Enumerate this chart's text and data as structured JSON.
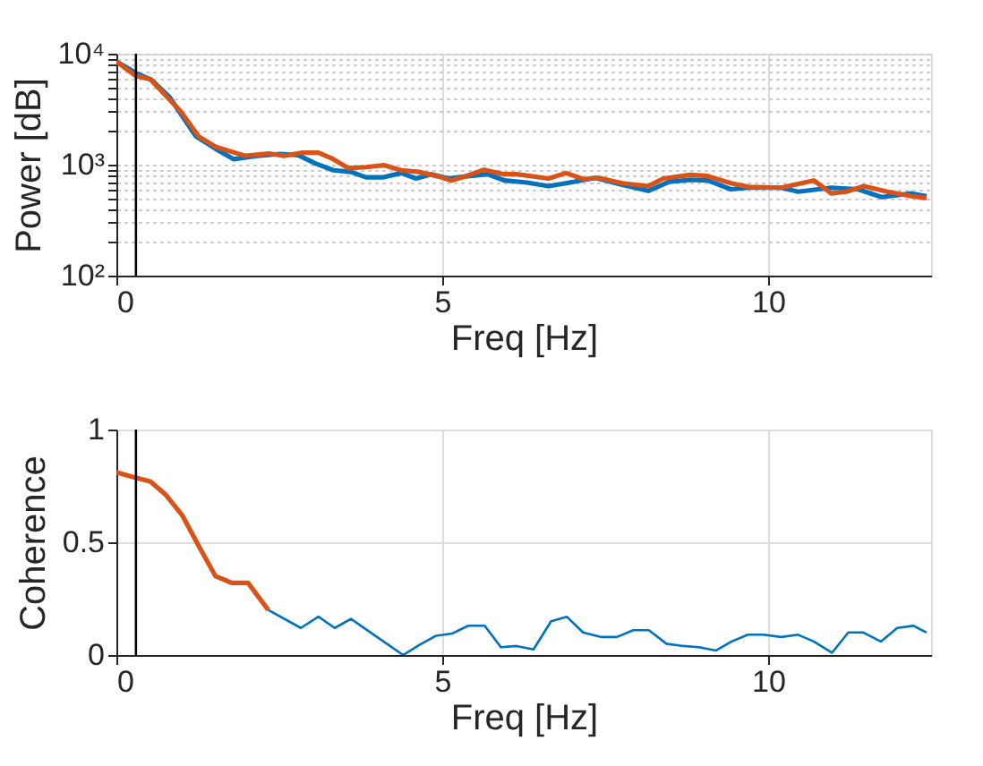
{
  "chart_data": [
    {
      "type": "line",
      "xlabel": "Freq [Hz]",
      "ylabel": "Power [dB]",
      "log": "y",
      "grid": true,
      "marker": "none",
      "line_style": "solid",
      "xlim": [
        0,
        12.5
      ],
      "xticks": [
        0,
        5,
        10
      ],
      "ylim": [
        100,
        10000
      ],
      "yticks": [
        {
          "value": 100,
          "label": "10²"
        },
        {
          "value": 200,
          "label": null
        },
        {
          "value": 300,
          "label": null
        },
        {
          "value": 400,
          "label": null
        },
        {
          "value": 500,
          "label": null
        },
        {
          "value": 600,
          "label": null
        },
        {
          "value": 700,
          "label": null
        },
        {
          "value": 800,
          "label": null
        },
        {
          "value": 900,
          "label": null
        },
        {
          "value": 1000,
          "label": "10³"
        },
        {
          "value": 2000,
          "label": null
        },
        {
          "value": 3000,
          "label": null
        },
        {
          "value": 4000,
          "label": null
        },
        {
          "value": 5000,
          "label": null
        },
        {
          "value": 6000,
          "label": null
        },
        {
          "value": 7000,
          "label": null
        },
        {
          "value": 8000,
          "label": null
        },
        {
          "value": 9000,
          "label": null
        },
        {
          "value": 10000,
          "label": "10⁴"
        }
      ],
      "ref_lines": [
        {
          "axis": "x",
          "value": 0.3,
          "color": "#000000"
        }
      ],
      "series": [
        {
          "color": "#0072bd",
          "x": [
            0,
            0.3,
            0.54,
            0.81,
            1.22,
            1.53,
            1.8,
            2.16,
            2.52,
            2.79,
            3.06,
            3.33,
            3.6,
            3.83,
            4.1,
            4.37,
            4.6,
            4.83,
            5.1,
            5.42,
            5.7,
            5.96,
            6.3,
            6.63,
            6.9,
            7.35,
            7.76,
            8.16,
            8.48,
            8.8,
            9.07,
            9.43,
            9.7,
            10.2,
            10.46,
            10.97,
            11.38,
            11.74,
            12.2,
            12.43
          ],
          "values": [
            8500,
            6700,
            5800,
            4100,
            1800,
            1380,
            1120,
            1200,
            1250,
            1220,
            1020,
            890,
            860,
            770,
            770,
            840,
            750,
            820,
            750,
            790,
            820,
            720,
            690,
            640,
            680,
            760,
            660,
            580,
            700,
            730,
            720,
            600,
            620,
            620,
            570,
            620,
            600,
            510,
            550,
            520
          ]
        },
        {
          "color": "#d95319",
          "x": [
            0,
            0.3,
            0.52,
            0.99,
            1.26,
            1.53,
            1.98,
            2.34,
            2.57,
            2.84,
            3.1,
            3.33,
            3.56,
            3.83,
            4.1,
            4.37,
            4.64,
            4.98,
            5.14,
            5.37,
            5.64,
            5.95,
            6.14,
            6.63,
            6.9,
            7.17,
            7.4,
            7.76,
            8.16,
            8.39,
            8.8,
            9.07,
            9.43,
            9.7,
            10.2,
            10.7,
            10.97,
            11.2,
            11.47,
            11.83,
            12.2,
            12.43
          ],
          "values": [
            8500,
            6300,
            5900,
            3000,
            1800,
            1440,
            1200,
            1260,
            1200,
            1280,
            1280,
            1120,
            930,
            950,
            990,
            890,
            860,
            770,
            720,
            790,
            900,
            820,
            820,
            750,
            840,
            740,
            760,
            680,
            640,
            750,
            810,
            790,
            680,
            630,
            620,
            720,
            550,
            570,
            640,
            570,
            520,
            500
          ]
        }
      ]
    },
    {
      "type": "line",
      "xlabel": "Freq [Hz]",
      "ylabel": "Coherence",
      "grid": true,
      "marker": "none",
      "line_style": "solid",
      "xlim": [
        0,
        12.5
      ],
      "xticks": [
        0,
        5,
        10
      ],
      "ylim": [
        0,
        1
      ],
      "yticks": [
        0,
        0.5,
        1
      ],
      "ref_lines": [
        {
          "axis": "x",
          "value": 0.3,
          "color": "#000000"
        }
      ],
      "series": [
        {
          "color": "#0072bd",
          "x": [
            2.33,
            2.83,
            3.1,
            3.35,
            3.6,
            4.0,
            4.4,
            4.65,
            4.9,
            5.15,
            5.4,
            5.65,
            5.9,
            6.14,
            6.4,
            6.67,
            6.91,
            7.16,
            7.43,
            7.68,
            7.93,
            8.17,
            8.44,
            8.7,
            8.94,
            9.2,
            9.44,
            9.69,
            9.93,
            10.2,
            10.46,
            10.7,
            10.98,
            11.23,
            11.46,
            11.73,
            11.98,
            12.23,
            12.43
          ],
          "values": [
            0.2,
            0.12,
            0.17,
            0.12,
            0.16,
            0.08,
            0.0,
            0.045,
            0.085,
            0.095,
            0.13,
            0.13,
            0.035,
            0.04,
            0.025,
            0.15,
            0.17,
            0.1,
            0.08,
            0.08,
            0.11,
            0.11,
            0.05,
            0.04,
            0.035,
            0.02,
            0.06,
            0.09,
            0.09,
            0.08,
            0.09,
            0.06,
            0.01,
            0.1,
            0.1,
            0.06,
            0.12,
            0.13,
            0.1
          ]
        },
        {
          "color": "#d95319",
          "x": [
            0,
            0.25,
            0.52,
            0.76,
            1.01,
            1.27,
            1.52,
            1.77,
            2.02,
            2.33
          ],
          "values": [
            0.81,
            0.79,
            0.77,
            0.71,
            0.62,
            0.48,
            0.35,
            0.32,
            0.32,
            0.2
          ]
        }
      ]
    }
  ]
}
